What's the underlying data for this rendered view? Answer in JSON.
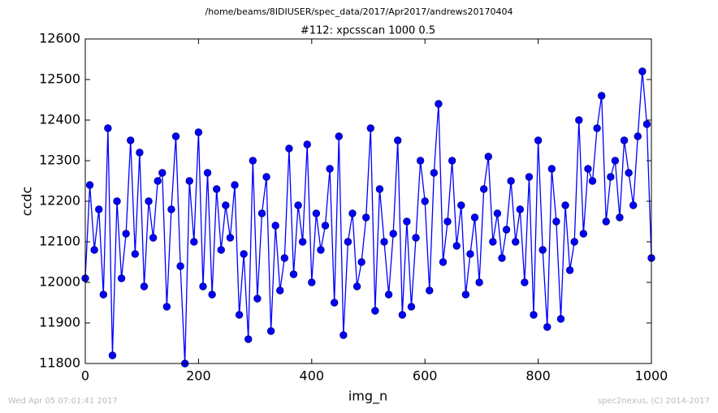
{
  "chart_data": {
    "type": "line",
    "suptitle": "/home/beams/8IDIUSER/spec_data/2017/Apr2017/andrews20170404",
    "title": "#112: xpcsscan 1000 0.5",
    "xlabel": "img_n",
    "ylabel": "ccdc",
    "footer_left": "Wed Apr 05 07:01:41 2017",
    "footer_right": "spec2nexus, (C) 2014-2017",
    "xlim": [
      0,
      1000
    ],
    "xticks": [
      0,
      200,
      400,
      600,
      800,
      1000
    ],
    "ylim": [
      11800,
      12600
    ],
    "yticks": [
      11800,
      11900,
      12000,
      12100,
      12200,
      12300,
      12400,
      12500,
      12600
    ],
    "x": [
      0,
      8,
      16,
      24,
      32,
      40,
      48,
      56,
      64,
      72,
      80,
      88,
      96,
      104,
      112,
      120,
      128,
      136,
      144,
      152,
      160,
      168,
      176,
      184,
      192,
      200,
      208,
      216,
      224,
      232,
      240,
      248,
      256,
      264,
      272,
      280,
      288,
      296,
      304,
      312,
      320,
      328,
      336,
      344,
      352,
      360,
      368,
      376,
      384,
      392,
      400,
      408,
      416,
      424,
      432,
      440,
      448,
      456,
      464,
      472,
      480,
      488,
      496,
      504,
      512,
      520,
      528,
      536,
      544,
      552,
      560,
      568,
      576,
      584,
      592,
      600,
      608,
      616,
      624,
      632,
      640,
      648,
      656,
      664,
      672,
      680,
      688,
      696,
      704,
      712,
      720,
      728,
      736,
      744,
      752,
      760,
      768,
      776,
      784,
      792,
      800,
      808,
      816,
      824,
      832,
      840,
      848,
      856,
      864,
      872,
      880,
      888,
      896,
      904,
      912,
      920,
      928,
      936,
      944,
      952,
      960,
      968,
      976,
      984,
      992,
      1000
    ],
    "series": [
      {
        "name": "ccdc",
        "color": "#0000ff",
        "marker_edge": "#000080",
        "values": [
          12010,
          12240,
          12080,
          12180,
          11970,
          12380,
          11820,
          12200,
          12010,
          12120,
          12350,
          12070,
          12320,
          11990,
          12200,
          12110,
          12250,
          12270,
          11940,
          12180,
          12360,
          12040,
          11800,
          12250,
          12100,
          12370,
          11990,
          12270,
          11970,
          12230,
          12080,
          12190,
          12110,
          12240,
          11920,
          12070,
          11860,
          12300,
          11960,
          12170,
          12260,
          11880,
          12140,
          11980,
          12060,
          12330,
          12020,
          12190,
          12100,
          12340,
          12000,
          12170,
          12080,
          12140,
          12280,
          11950,
          12360,
          11870,
          12100,
          12170,
          11990,
          12050,
          12160,
          12380,
          11930,
          12230,
          12100,
          11970,
          12120,
          12350,
          11920,
          12150,
          11940,
          12110,
          12300,
          12200,
          11980,
          12270,
          12440,
          12050,
          12150,
          12300,
          12090,
          12190,
          11970,
          12070,
          12160,
          12000,
          12230,
          12310,
          12100,
          12170,
          12060,
          12130,
          12250,
          12100,
          12180,
          12000,
          12260,
          11920,
          12350,
          12080,
          11890,
          12280,
          12150,
          11910,
          12190,
          12030,
          12100,
          12400,
          12120,
          12280,
          12250,
          12380,
          12460,
          12150,
          12260,
          12300,
          12160,
          12350,
          12270,
          12190,
          12360,
          12520,
          12390,
          12060
        ]
      }
    ]
  }
}
